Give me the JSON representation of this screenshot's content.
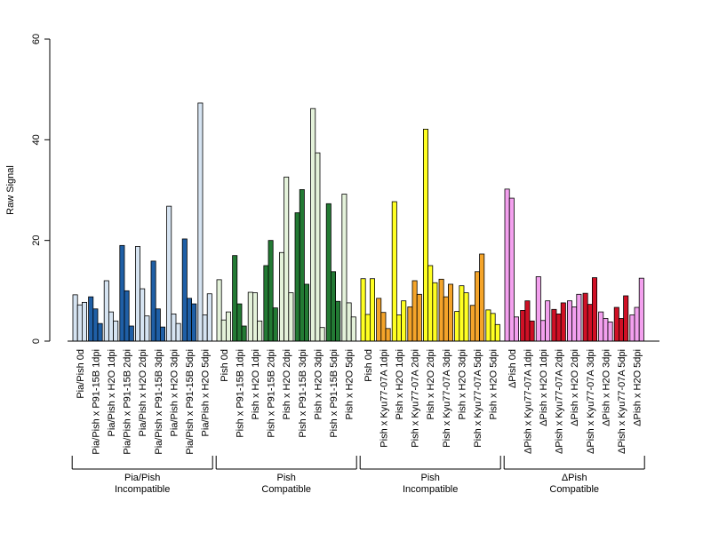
{
  "chart_data": {
    "type": "bar",
    "title": "",
    "xlabel": "",
    "ylabel": "Raw Signal",
    "ylim": [
      0,
      60
    ],
    "y_ticks": [
      0,
      20,
      40,
      60
    ],
    "grid": false,
    "colors": {
      "light_blue": "#d6e4f2",
      "dark_blue": "#1f5fa6",
      "light_green": "#e4f2da",
      "dark_green": "#237a34",
      "yellow": "#ffff22",
      "orange": "#f4a42a",
      "pink": "#f3a0ee",
      "red": "#d01025"
    },
    "categories": [
      {
        "label": "Pia/Pish 0d",
        "values": [
          9.2,
          7.2,
          7.7
        ],
        "color": "#d6e4f2"
      },
      {
        "label": "Pia/Pish x P91-15B 1dpi",
        "values": [
          8.8,
          6.4,
          3.5
        ],
        "color": "#1f5fa6"
      },
      {
        "label": "Pia/Pish x H2O 1dpi",
        "values": [
          12.0,
          5.8,
          4.0
        ],
        "color": "#d6e4f2"
      },
      {
        "label": "Pia/Pish x P91-15B 2dpi",
        "values": [
          19.0,
          10.0,
          3.0
        ],
        "color": "#1f5fa6"
      },
      {
        "label": "Pia/Pish x H2O 2dpi",
        "values": [
          18.8,
          10.4,
          5.0
        ],
        "color": "#d6e4f2"
      },
      {
        "label": "Pia/Pish x P91-15B 3dpi",
        "values": [
          15.9,
          6.4,
          2.8
        ],
        "color": "#1f5fa6"
      },
      {
        "label": "Pia/Pish x H2O 3dpi",
        "values": [
          26.8,
          5.4,
          3.5
        ],
        "color": "#d6e4f2"
      },
      {
        "label": "Pia/Pish x P91-15B 5dpi",
        "values": [
          20.3,
          8.5,
          7.4
        ],
        "color": "#1f5fa6"
      },
      {
        "label": "Pia/Pish x H2O 5dpi",
        "values": [
          47.3,
          5.2,
          9.4
        ],
        "color": "#d6e4f2"
      },
      {
        "label": "Pish 0d",
        "values": [
          12.2,
          4.2,
          5.8
        ],
        "color": "#e4f2da"
      },
      {
        "label": "Pish x P91-15B 1dpi",
        "values": [
          17.0,
          7.4,
          3.0
        ],
        "color": "#237a34"
      },
      {
        "label": "Pish x H2O 1dpi",
        "values": [
          9.7,
          9.6,
          4.0
        ],
        "color": "#e4f2da"
      },
      {
        "label": "Pish x P91-15B 2dpi",
        "values": [
          15.0,
          20.0,
          6.6
        ],
        "color": "#237a34"
      },
      {
        "label": "Pish x H2O 2dpi",
        "values": [
          17.6,
          32.6,
          9.6
        ],
        "color": "#e4f2da"
      },
      {
        "label": "Pish x P91-15B 3dpi",
        "values": [
          25.5,
          30.1,
          11.3
        ],
        "color": "#237a34"
      },
      {
        "label": "Pish x H2O 3dpi",
        "values": [
          46.2,
          37.4,
          2.7
        ],
        "color": "#e4f2da"
      },
      {
        "label": "Pish x P91-15B 5dpi",
        "values": [
          27.3,
          13.8,
          7.9
        ],
        "color": "#237a34"
      },
      {
        "label": "Pish x H2O 5dpi",
        "values": [
          29.2,
          7.6,
          4.8
        ],
        "color": "#e4f2da"
      },
      {
        "label": "Pish 0d",
        "values": [
          12.4,
          5.3,
          12.4
        ],
        "color": "#ffff22"
      },
      {
        "label": "Pish x Kyu77-07A 1dpi",
        "values": [
          8.5,
          5.7,
          2.5
        ],
        "color": "#f4a42a"
      },
      {
        "label": "Pish x H2O 1dpi",
        "values": [
          27.7,
          5.2,
          8.0
        ],
        "color": "#ffff22"
      },
      {
        "label": "Pish x Kyu77-07A 2dpi",
        "values": [
          6.8,
          12.0,
          9.3
        ],
        "color": "#f4a42a"
      },
      {
        "label": "Pish x H2O 2dpi",
        "values": [
          42.1,
          15.0,
          11.6
        ],
        "color": "#ffff22"
      },
      {
        "label": "Pish x Kyu77-07A 3dpi",
        "values": [
          12.3,
          8.8,
          11.3
        ],
        "color": "#f4a42a"
      },
      {
        "label": "Pish x H2O 3dpi",
        "values": [
          5.9,
          11.0,
          9.6
        ],
        "color": "#ffff22"
      },
      {
        "label": "Pish x Kyu77-07A 5dpi",
        "values": [
          7.1,
          13.8,
          17.3
        ],
        "color": "#f4a42a"
      },
      {
        "label": "Pish x H2O 5dpi",
        "values": [
          6.2,
          5.5,
          3.3
        ],
        "color": "#ffff22"
      },
      {
        "label": "ΔPish 0d",
        "values": [
          30.2,
          28.4,
          4.8
        ],
        "color": "#f3a0ee"
      },
      {
        "label": "ΔPish x Kyu77-07A 1dpi",
        "values": [
          6.1,
          8.0,
          4.0
        ],
        "color": "#d01025"
      },
      {
        "label": "ΔPish x H2O 1dpi",
        "values": [
          12.8,
          4.1,
          8.0
        ],
        "color": "#f3a0ee"
      },
      {
        "label": "ΔPish x Kyu77-07A 2dpi",
        "values": [
          6.3,
          5.4,
          7.6
        ],
        "color": "#d01025"
      },
      {
        "label": "ΔPish x H2O 2dpi",
        "values": [
          8.0,
          6.8,
          9.3
        ],
        "color": "#f3a0ee"
      },
      {
        "label": "ΔPish x Kyu77-07A 3dpi",
        "values": [
          9.5,
          7.3,
          12.6
        ],
        "color": "#d01025"
      },
      {
        "label": "ΔPish x H2O 3dpi",
        "values": [
          5.8,
          4.5,
          3.8
        ],
        "color": "#f3a0ee"
      },
      {
        "label": "ΔPish x Kyu77-07A 5dpi",
        "values": [
          6.7,
          4.5,
          9.0
        ],
        "color": "#d01025"
      },
      {
        "label": "ΔPish x H2O 5dpi",
        "values": [
          5.2,
          6.7,
          12.5
        ],
        "color": "#f3a0ee"
      }
    ],
    "groups": [
      {
        "label_line1": "Pia/Pish",
        "label_line2": "Incompatible"
      },
      {
        "label_line1": "Pish",
        "label_line2": "Compatible"
      },
      {
        "label_line1": "Pish",
        "label_line2": "Incompatible"
      },
      {
        "label_line1": "ΔPish",
        "label_line2": "Compatible"
      }
    ]
  }
}
